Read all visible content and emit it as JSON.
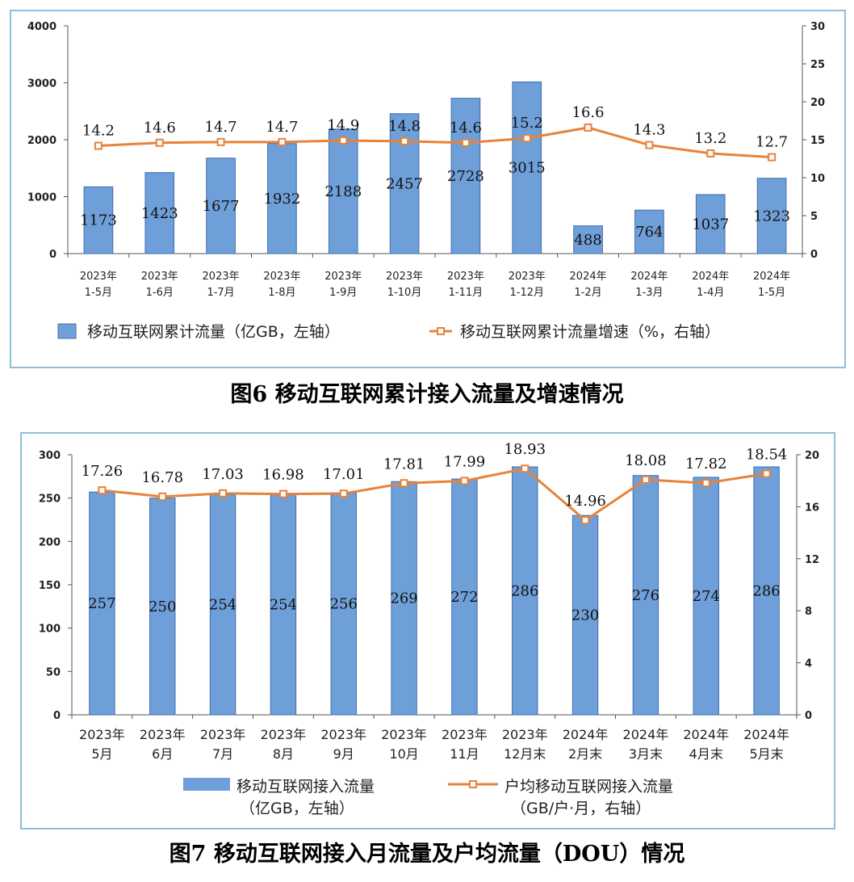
{
  "captions": {
    "fig6": "图6 移动互联网累计接入流量及增速情况",
    "fig7": "图7 移动互联网接入月流量及户均流量（DOU）情况"
  },
  "colors": {
    "bar": "#6f9fd8",
    "bar_edge": "#3f6fae",
    "line": "#e8823a",
    "axis": "#555555"
  },
  "chart_data": [
    {
      "id": "fig6",
      "type": "bar+line",
      "title": "图6 移动互联网累计接入流量及增速情况",
      "categories": [
        [
          "2023年",
          "1-5月"
        ],
        [
          "2023年",
          "1-6月"
        ],
        [
          "2023年",
          "1-7月"
        ],
        [
          "2023年",
          "1-8月"
        ],
        [
          "2023年",
          "1-9月"
        ],
        [
          "2023年",
          "1-10月"
        ],
        [
          "2023年",
          "1-11月"
        ],
        [
          "2023年",
          "1-12月"
        ],
        [
          "2024年",
          "1-2月"
        ],
        [
          "2024年",
          "1-3月"
        ],
        [
          "2024年",
          "1-4月"
        ],
        [
          "2024年",
          "1-5月"
        ]
      ],
      "bar_series": {
        "name": "移动互联网累计流量（亿GB，左轴）",
        "values": [
          1173,
          1423,
          1677,
          1932,
          2188,
          2457,
          2728,
          3015,
          488,
          764,
          1037,
          1323
        ]
      },
      "line_series": {
        "name": "移动互联网累计流量增速（%，右轴）",
        "values": [
          14.2,
          14.6,
          14.7,
          14.7,
          14.9,
          14.8,
          14.6,
          15.2,
          16.6,
          14.3,
          13.2,
          12.7
        ]
      },
      "y_left": {
        "min": 0,
        "max": 4000,
        "ticks": [
          0,
          1000,
          2000,
          3000,
          4000
        ]
      },
      "y_right": {
        "min": 0,
        "max": 30,
        "ticks": [
          0,
          5,
          10,
          15,
          20,
          25,
          30
        ]
      },
      "legend_position": "bottom"
    },
    {
      "id": "fig7",
      "type": "bar+line",
      "title": "图7 移动互联网接入月流量及户均流量（DOU）情况",
      "categories": [
        [
          "2023年",
          "5月"
        ],
        [
          "2023年",
          "6月"
        ],
        [
          "2023年",
          "7月"
        ],
        [
          "2023年",
          "8月"
        ],
        [
          "2023年",
          "9月"
        ],
        [
          "2023年",
          "10月"
        ],
        [
          "2023年",
          "11月"
        ],
        [
          "2023年",
          "12月末"
        ],
        [
          "2024年",
          "2月末"
        ],
        [
          "2024年",
          "3月末"
        ],
        [
          "2024年",
          "4月末"
        ],
        [
          "2024年",
          "5月末"
        ]
      ],
      "bar_series": {
        "name": [
          "移动互联网接入流量",
          "（亿GB，左轴）"
        ],
        "values": [
          257,
          250,
          254,
          254,
          256,
          269,
          272,
          286,
          230,
          276,
          274,
          286
        ]
      },
      "line_series": {
        "name": [
          "户均移动互联网接入流量",
          "（GB/户·月，右轴）"
        ],
        "values": [
          17.26,
          16.78,
          17.03,
          16.98,
          17.01,
          17.81,
          17.99,
          18.93,
          14.96,
          18.08,
          17.82,
          18.54
        ]
      },
      "y_left": {
        "min": 0,
        "max": 300,
        "ticks": [
          0,
          50,
          100,
          150,
          200,
          250,
          300
        ]
      },
      "y_right": {
        "min": 0,
        "max": 20,
        "ticks": [
          0,
          4,
          8,
          12,
          16,
          20
        ]
      },
      "legend_position": "bottom"
    }
  ]
}
